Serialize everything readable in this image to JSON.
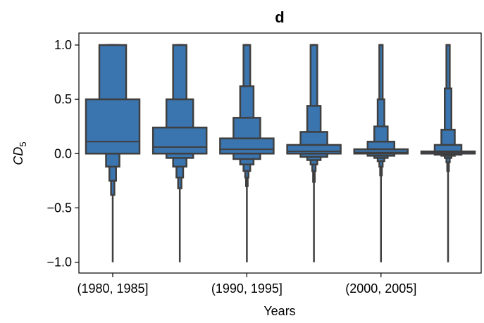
{
  "chart_data": {
    "type": "boxen",
    "title": "d",
    "x_label": "Years",
    "y_label": "CD",
    "y_label_subscript": "5",
    "categories": [
      "(1980, 1985]",
      null,
      "(1990, 1995]",
      null,
      "(2000, 2005]",
      null
    ],
    "color": "#3b75af",
    "edge_color": "#3f3f3f",
    "boxes": [
      {
        "median": 0.11,
        "min": -1.0,
        "max": 1.0,
        "levels": [
          [
            0,
            0.5
          ],
          [
            0,
            1.0
          ],
          [
            -0.12,
            1.0
          ],
          [
            -0.25,
            1.0
          ],
          [
            -0.38,
            1.0
          ]
        ]
      },
      {
        "median": 0.06,
        "min": -1.0,
        "max": 1.0,
        "levels": [
          [
            0,
            0.24
          ],
          [
            -0.04,
            0.5
          ],
          [
            -0.12,
            1.0
          ],
          [
            -0.22,
            1.0
          ],
          [
            -0.32,
            1.0
          ]
        ]
      },
      {
        "median": 0.04,
        "min": -1.0,
        "max": 1.0,
        "levels": [
          [
            0,
            0.14
          ],
          [
            -0.05,
            0.33
          ],
          [
            -0.1,
            0.62
          ],
          [
            -0.16,
            1.0
          ],
          [
            -0.22,
            1.0
          ],
          [
            -0.3,
            1.0
          ]
        ]
      },
      {
        "median": 0.02,
        "min": -1.0,
        "max": 1.0,
        "levels": [
          [
            0,
            0.08
          ],
          [
            -0.03,
            0.2
          ],
          [
            -0.06,
            0.44
          ],
          [
            -0.1,
            1.0
          ],
          [
            -0.16,
            1.0
          ],
          [
            -0.26,
            1.0
          ]
        ]
      },
      {
        "median": 0.01,
        "min": -1.0,
        "max": 1.0,
        "levels": [
          [
            0,
            0.04
          ],
          [
            -0.02,
            0.11
          ],
          [
            -0.04,
            0.25
          ],
          [
            -0.07,
            0.5
          ],
          [
            -0.12,
            1.0
          ],
          [
            -0.2,
            1.0
          ]
        ]
      },
      {
        "median": 0.005,
        "min": -1.0,
        "max": 1.0,
        "levels": [
          [
            0,
            0.02
          ],
          [
            -0.01,
            0.08
          ],
          [
            -0.02,
            0.22
          ],
          [
            -0.04,
            0.6
          ],
          [
            -0.08,
            1.0
          ],
          [
            -0.16,
            1.0
          ]
        ]
      }
    ],
    "ylim": [
      -1.1,
      1.11
    ],
    "yticks": [
      {
        "value": -1.0,
        "label": "−1.0"
      },
      {
        "value": -0.5,
        "label": "−0.5"
      },
      {
        "value": 0.0,
        "label": "0.0"
      },
      {
        "value": 0.5,
        "label": "0.5"
      },
      {
        "value": 1.0,
        "label": "1.0"
      }
    ]
  }
}
